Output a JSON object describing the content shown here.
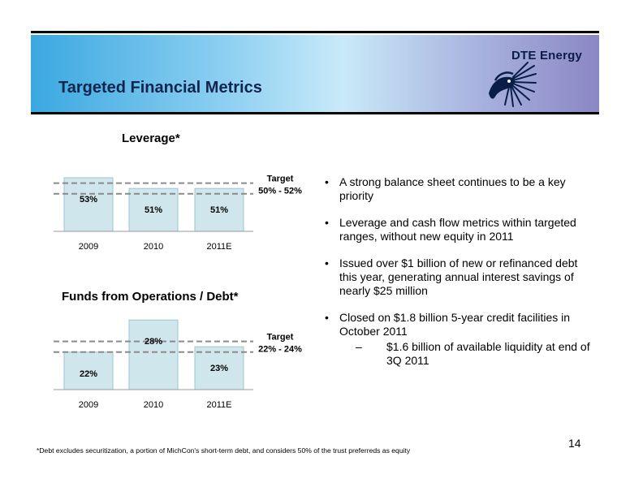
{
  "header": {
    "title": "Targeted Financial Metrics",
    "logo_text": "DTE Energy",
    "logo_icon": "dte-sun-logo-icon"
  },
  "chart_data": [
    {
      "type": "bar",
      "title": "Leverage*",
      "categories": [
        "2009",
        "2010",
        "2011E"
      ],
      "values": [
        53,
        51,
        51
      ],
      "value_labels": [
        "53%",
        "51%",
        "51%"
      ],
      "target": {
        "label_line1": "Target",
        "label_line2": "50% - 52%",
        "low": 50,
        "high": 52
      },
      "bar_color": "#cfe7ec"
    },
    {
      "type": "bar",
      "title": "Funds from Operations / Debt*",
      "categories": [
        "2009",
        "2010",
        "2011E"
      ],
      "values": [
        22,
        28,
        23
      ],
      "value_labels": [
        "22%",
        "28%",
        "23%"
      ],
      "target": {
        "label_line1": "Target",
        "label_line2": "22% - 24%",
        "low": 22,
        "high": 24
      },
      "bar_color": "#cfe7ec"
    }
  ],
  "bullets": [
    "A strong balance sheet continues to be a key priority",
    "Leverage and cash flow metrics within targeted ranges, without new equity in 2011",
    "Issued over $1 billion of new or refinanced debt this year, generating annual interest savings of nearly $25 million",
    "Closed on $1.8 billion 5-year credit facilities in October 2011"
  ],
  "sub_bullets": [
    "$1.6 billion of available liquidity at end of 3Q 2011"
  ],
  "page_number": "14",
  "footnote": "*Debt excludes securitization, a portion of MichCon's short-term debt, and considers 50% of the trust preferreds as equity"
}
